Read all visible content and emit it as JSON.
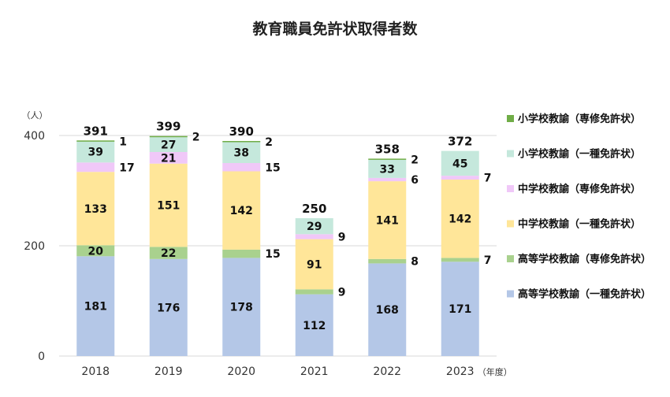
{
  "title": "教育職員免許状取得者数",
  "chart_data": {
    "type": "bar",
    "stacked": true,
    "title": "教育職員免許状取得者数",
    "categories": [
      "2018",
      "2019",
      "2020",
      "2021",
      "2022",
      "2023"
    ],
    "x_unit_label": "（年度）",
    "y_unit_label": "（人）",
    "ylim": [
      0,
      400
    ],
    "yticks": [
      0,
      200,
      400
    ],
    "grid": true,
    "legend_position": "right",
    "series": [
      {
        "name": "高等学校教諭（一種免許状）",
        "color": "#b4c7e7",
        "values": [
          181,
          176,
          178,
          112,
          168,
          171
        ]
      },
      {
        "name": "高等学校教諭（専修免許状）",
        "color": "#a9d18e",
        "values": [
          20,
          22,
          15,
          9,
          8,
          7
        ]
      },
      {
        "name": "中学校教諭（一種免許状）",
        "color": "#ffe699",
        "values": [
          133,
          151,
          142,
          91,
          141,
          142
        ]
      },
      {
        "name": "中学校教諭（専修免許状）",
        "color": "#f0c8f8",
        "values": [
          17,
          21,
          15,
          9,
          6,
          7
        ]
      },
      {
        "name": "小学校教諭（一種免許状）",
        "color": "#c5e8dc",
        "values": [
          39,
          27,
          38,
          29,
          33,
          45
        ]
      },
      {
        "name": "小学校教諭（専修免許状）",
        "color": "#70ad47",
        "values": [
          1,
          2,
          2,
          0,
          2,
          0
        ]
      }
    ],
    "totals": [
      391,
      399,
      390,
      250,
      358,
      372
    ]
  }
}
